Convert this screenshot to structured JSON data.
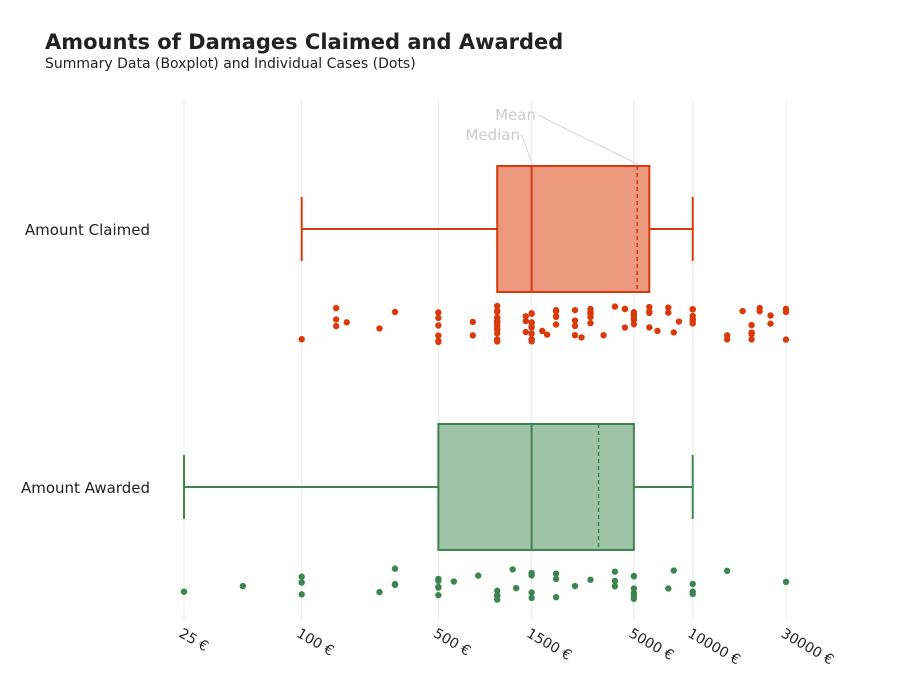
{
  "chart_data": {
    "type": "boxplot-with-dots",
    "title": "Amounts of Damages Claimed and Awarded",
    "subtitle": "Summary Data (Boxplot) and Individual Cases (Dots)",
    "x_scale": "log",
    "xlim": [
      25,
      30000
    ],
    "x_ticks": [
      25,
      100,
      500,
      1500,
      5000,
      10000,
      30000
    ],
    "x_tick_labels": [
      "25 €",
      "100 €",
      "500 €",
      "1500 €",
      "5000 €",
      "10000 €",
      "30000 €"
    ],
    "grid": "vertical",
    "annotations": {
      "mean": "Mean",
      "median": "Median"
    },
    "series": [
      {
        "name": "Amount Claimed",
        "color": "#d93a0b",
        "fill": "#eb9a80",
        "min": 100,
        "q1": 1000,
        "median": 1500,
        "q3": 6000,
        "max": 10000,
        "mean": 5200,
        "points": [
          100,
          150,
          150,
          150,
          170,
          250,
          300,
          500,
          500,
          500,
          500,
          500,
          500,
          750,
          750,
          1000,
          1000,
          1000,
          1000,
          1000,
          1000,
          1000,
          1000,
          1000,
          1000,
          1000,
          1000,
          1000,
          1000,
          1000,
          1400,
          1400,
          1400,
          1500,
          1500,
          1500,
          1500,
          1500,
          1500,
          1500,
          1500,
          1500,
          1500,
          1700,
          1800,
          2000,
          2000,
          2000,
          2000,
          2000,
          2500,
          2500,
          2500,
          2500,
          2700,
          3000,
          3000,
          3000,
          3000,
          3000,
          3000,
          3500,
          4000,
          4500,
          4500,
          4500,
          5000,
          5000,
          5000,
          5000,
          5000,
          5000,
          6000,
          6000,
          6000,
          6000,
          6600,
          7500,
          7500,
          8000,
          8500,
          10000,
          10000,
          10000,
          10000,
          10000,
          10000,
          10000,
          15000,
          15000,
          18000,
          20000,
          20000,
          20000,
          20000,
          20000,
          22000,
          22000,
          25000,
          25000,
          30000,
          30000,
          30000
        ]
      },
      {
        "name": "Amount Awarded",
        "color": "#3d8550",
        "fill": "#9fc3a7",
        "min": 25,
        "q1": 500,
        "median": 1500,
        "q3": 5000,
        "max": 10000,
        "mean": 3300,
        "points": [
          25,
          50,
          100,
          100,
          100,
          250,
          300,
          300,
          300,
          300,
          500,
          500,
          500,
          500,
          500,
          600,
          800,
          1000,
          1000,
          1000,
          1000,
          1200,
          1250,
          1500,
          1500,
          1500,
          1500,
          2000,
          2000,
          2000,
          2500,
          3000,
          4000,
          4000,
          4000,
          5000,
          5000,
          5000,
          5000,
          5000,
          5000,
          7500,
          8000,
          10000,
          10000,
          10000,
          15000,
          30000
        ]
      }
    ]
  }
}
